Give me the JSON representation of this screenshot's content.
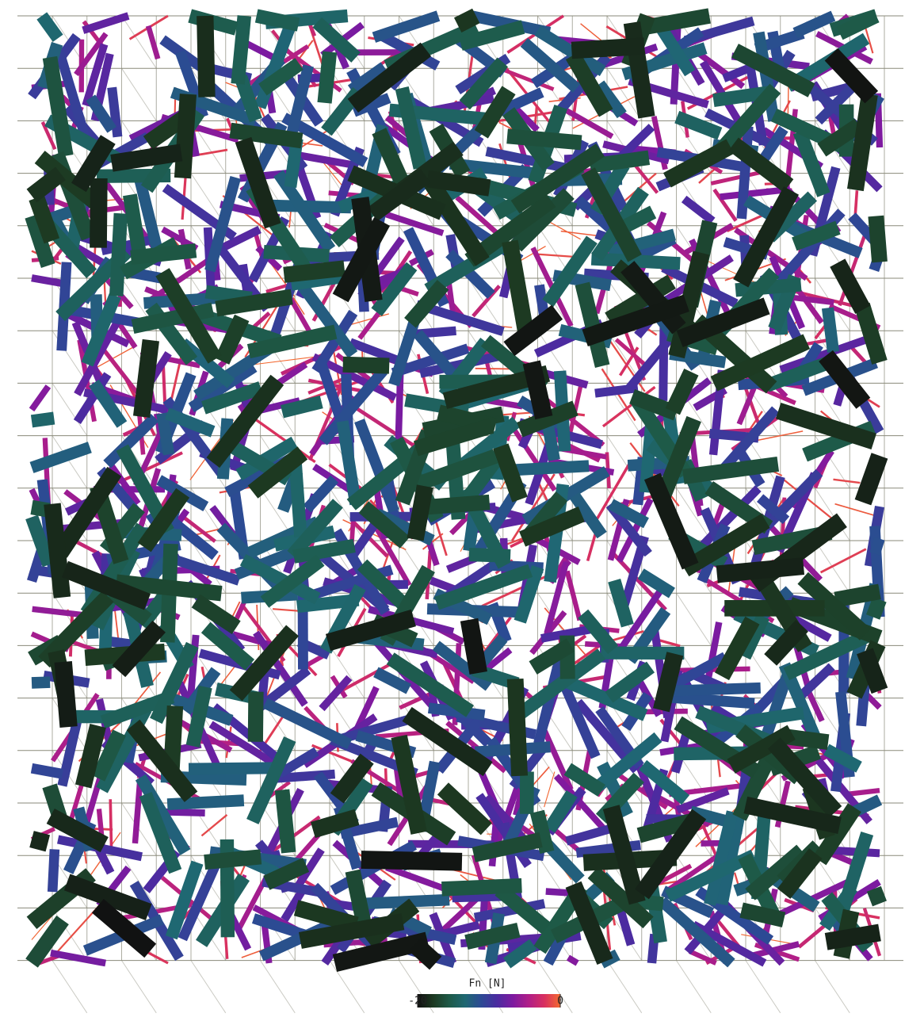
{
  "colorbar": {
    "label": "Fn [N]",
    "ticks": [
      -20,
      0
    ],
    "lim": [
      -20,
      0
    ],
    "colors": [
      "#111111",
      "#1d3a22",
      "#1e5a48",
      "#1f6872",
      "#2c4a94",
      "#4a2ca0",
      "#7d1aa0",
      "#b01e88",
      "#d83060",
      "#f46a30"
    ]
  }
}
